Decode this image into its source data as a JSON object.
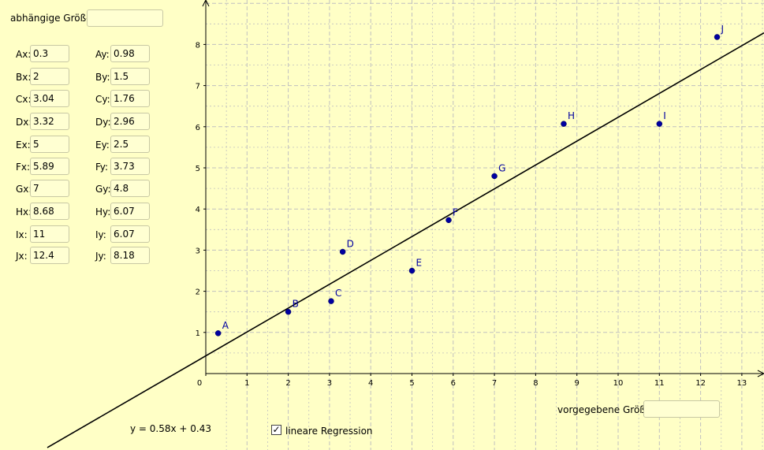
{
  "top_label": "abhängige Größe:",
  "top_value": "",
  "bottom_label": "vorgegebene Größe:",
  "bottom_value": "",
  "equation": "y = 0.58x + 0.43",
  "checkbox_label": "lineare Regression",
  "checkbox_mark": "✓",
  "points": [
    {
      "name": "A",
      "x_label": "Ax:",
      "y_label": "Ay:",
      "x": "0.3",
      "y": "0.98"
    },
    {
      "name": "B",
      "x_label": "Bx:",
      "y_label": "By:",
      "x": "2",
      "y": "1.5"
    },
    {
      "name": "C",
      "x_label": "Cx:",
      "y_label": "Cy:",
      "x": "3.04",
      "y": "1.76"
    },
    {
      "name": "D",
      "x_label": "Dx:",
      "y_label": "Dy:",
      "x": "3.32",
      "y": "2.96"
    },
    {
      "name": "E",
      "x_label": "Ex:",
      "y_label": "Ey:",
      "x": "5",
      "y": "2.5"
    },
    {
      "name": "F",
      "x_label": "Fx:",
      "y_label": "Fy:",
      "x": "5.89",
      "y": "3.73"
    },
    {
      "name": "G",
      "x_label": "Gx:",
      "y_label": "Gy:",
      "x": "7",
      "y": "4.8"
    },
    {
      "name": "H",
      "x_label": "Hx:",
      "y_label": "Hy:",
      "x": "8.68",
      "y": "6.07"
    },
    {
      "name": "I",
      "x_label": "Ix:",
      "y_label": "Iy:",
      "x": "11",
      "y": "6.07"
    },
    {
      "name": "J",
      "x_label": "Jx:",
      "y_label": "Jy:",
      "x": "12.4",
      "y": "8.18"
    }
  ],
  "chart_data": {
    "type": "scatter",
    "title": "",
    "xlabel": "",
    "ylabel": "",
    "xlim": [
      0,
      13.6
    ],
    "ylim": [
      0,
      8.6
    ],
    "x_ticks": [
      0,
      1,
      2,
      3,
      4,
      5,
      6,
      7,
      8,
      9,
      10,
      11,
      12,
      13
    ],
    "y_ticks": [
      1,
      2,
      3,
      4,
      5,
      6,
      7,
      8
    ],
    "grid": true,
    "series": [
      {
        "points": [
          {
            "label": "A",
            "x": 0.3,
            "y": 0.98
          },
          {
            "label": "B",
            "x": 2,
            "y": 1.5
          },
          {
            "label": "C",
            "x": 3.04,
            "y": 1.76
          },
          {
            "label": "D",
            "x": 3.32,
            "y": 2.96
          },
          {
            "label": "E",
            "x": 5,
            "y": 2.5
          },
          {
            "label": "F",
            "x": 5.89,
            "y": 3.73
          },
          {
            "label": "G",
            "x": 7,
            "y": 4.8
          },
          {
            "label": "H",
            "x": 8.68,
            "y": 6.07
          },
          {
            "label": "I",
            "x": 11,
            "y": 6.07
          },
          {
            "label": "J",
            "x": 12.4,
            "y": 8.18
          }
        ]
      }
    ],
    "regression": {
      "slope": 0.58,
      "intercept": 0.43
    }
  },
  "colors": {
    "background": "#ffffc6",
    "point": "#0000a0",
    "grid": "#c0c0c0",
    "axis": "#000000"
  }
}
